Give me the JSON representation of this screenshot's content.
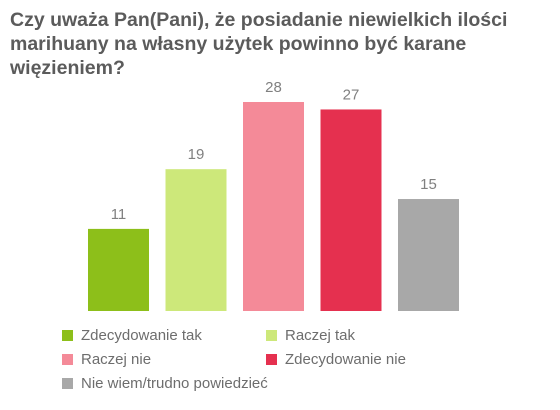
{
  "chart_data": {
    "type": "bar",
    "title": "Czy uważa Pan(Pani), że posiadanie niewielkich ilości marihuany na własny użytek powinno być karane więzieniem?",
    "categories": [
      "Zdecydowanie tak",
      "Raczej tak",
      "Raczej nie",
      "Zdecydowanie nie",
      "Nie wiem/trudno powiedzieć"
    ],
    "values": [
      11,
      19,
      28,
      27,
      15
    ],
    "colors": [
      "#8dbf1a",
      "#cde87a",
      "#f48a98",
      "#e5304f",
      "#a8a8a8"
    ],
    "ylim": [
      0,
      28
    ],
    "grid": false,
    "data_labels": true,
    "legend_position": "bottom",
    "label_color": "#808080"
  }
}
